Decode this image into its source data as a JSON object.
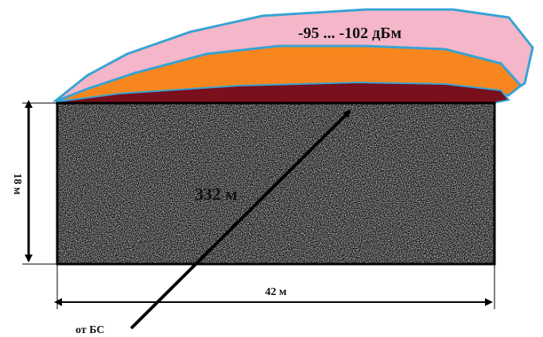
{
  "signal_label": "-95 ... -102 дБм",
  "distance_label": "332 м",
  "height_label": "18 м",
  "width_label": "42 м",
  "source_label": "от БС"
}
